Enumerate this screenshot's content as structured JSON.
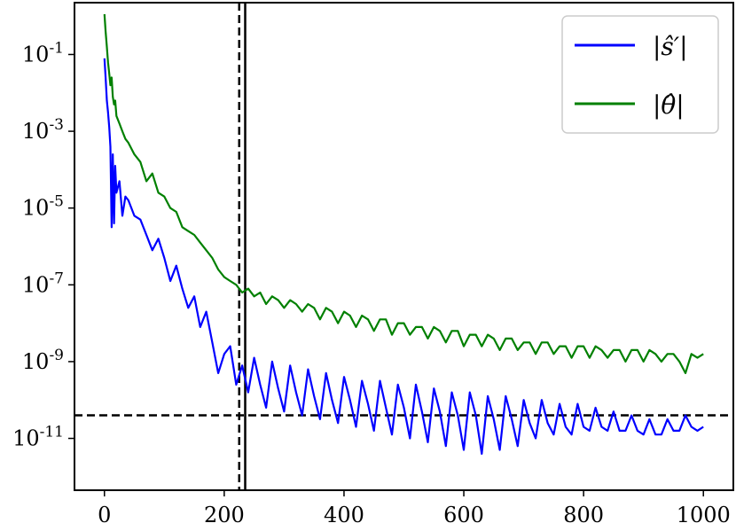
{
  "chart_data": {
    "type": "line",
    "title": "",
    "xlabel": "",
    "ylabel": "",
    "xlim": [
      -50,
      1050
    ],
    "ylim_log10": [
      -12.35,
      0.35
    ],
    "yscale": "log",
    "grid": false,
    "legend_position": "top-right",
    "x_ticks": [
      0,
      200,
      400,
      600,
      800,
      1000
    ],
    "x_tick_labels": [
      "0",
      "200",
      "400",
      "600",
      "800",
      "1000"
    ],
    "y_ticks_log10": [
      -1,
      -3,
      -5,
      -7,
      -9,
      -11
    ],
    "y_tick_labels": [
      {
        "base": "10",
        "exp": "-1"
      },
      {
        "base": "10",
        "exp": "-3"
      },
      {
        "base": "10",
        "exp": "-5"
      },
      {
        "base": "10",
        "exp": "-7"
      },
      {
        "base": "10",
        "exp": "-9"
      },
      {
        "base": "10",
        "exp": "-11"
      }
    ],
    "reference_lines": [
      {
        "orientation": "vertical",
        "x": 225,
        "style": "dashed",
        "color": "#000000"
      },
      {
        "orientation": "vertical",
        "x": 235,
        "style": "solid",
        "color": "#000000"
      },
      {
        "orientation": "horizontal",
        "y_log10": -10.4,
        "style": "dashed",
        "color": "#000000"
      }
    ],
    "series": [
      {
        "name": "|ŝ′|",
        "color": "#0000ff",
        "x": [
          0,
          2,
          4,
          6,
          8,
          10,
          12,
          14,
          16,
          18,
          20,
          25,
          30,
          35,
          40,
          50,
          60,
          70,
          80,
          90,
          100,
          110,
          120,
          130,
          140,
          150,
          160,
          170,
          180,
          190,
          200,
          210,
          220,
          230,
          240,
          250,
          260,
          270,
          280,
          290,
          300,
          310,
          320,
          330,
          340,
          350,
          360,
          370,
          380,
          390,
          400,
          410,
          420,
          430,
          440,
          450,
          460,
          470,
          480,
          490,
          500,
          510,
          520,
          530,
          540,
          550,
          560,
          570,
          580,
          590,
          600,
          610,
          620,
          630,
          640,
          650,
          660,
          670,
          680,
          690,
          700,
          710,
          720,
          730,
          740,
          750,
          760,
          770,
          780,
          790,
          800,
          810,
          820,
          830,
          840,
          850,
          860,
          870,
          880,
          890,
          900,
          910,
          920,
          930,
          940,
          950,
          960,
          970,
          980,
          990,
          1000
        ],
        "y_log10": [
          -1.1,
          -1.6,
          -2.2,
          -2.5,
          -2.9,
          -3.4,
          -5.5,
          -3.6,
          -5.4,
          -3.9,
          -4.6,
          -4.3,
          -5.2,
          -4.7,
          -4.8,
          -5.2,
          -5.3,
          -5.7,
          -6.1,
          -5.8,
          -6.3,
          -6.9,
          -6.5,
          -7.1,
          -7.6,
          -7.3,
          -8.1,
          -7.7,
          -8.5,
          -9.3,
          -8.8,
          -8.6,
          -9.6,
          -9.1,
          -9.8,
          -8.9,
          -9.6,
          -10.2,
          -9.0,
          -9.7,
          -10.3,
          -9.1,
          -9.8,
          -10.4,
          -9.2,
          -9.9,
          -10.5,
          -9.3,
          -10.0,
          -10.6,
          -9.4,
          -10.0,
          -10.7,
          -9.5,
          -10.1,
          -10.8,
          -9.5,
          -10.2,
          -10.9,
          -9.6,
          -10.2,
          -11.0,
          -9.6,
          -10.3,
          -11.1,
          -9.7,
          -10.3,
          -11.2,
          -9.8,
          -10.4,
          -11.3,
          -9.8,
          -10.4,
          -11.4,
          -9.9,
          -10.5,
          -11.3,
          -9.9,
          -10.5,
          -11.2,
          -10.0,
          -10.6,
          -11.0,
          -10.0,
          -10.6,
          -10.9,
          -10.1,
          -10.7,
          -10.9,
          -10.1,
          -10.7,
          -10.8,
          -10.2,
          -10.7,
          -10.8,
          -10.3,
          -10.8,
          -10.8,
          -10.4,
          -10.8,
          -10.9,
          -10.5,
          -10.9,
          -10.9,
          -10.5,
          -10.8,
          -10.8,
          -10.4,
          -10.7,
          -10.8,
          -10.7
        ]
      },
      {
        "name": "|θ̂|",
        "color": "#008000",
        "x": [
          0,
          2,
          4,
          6,
          8,
          10,
          12,
          14,
          16,
          18,
          20,
          25,
          30,
          35,
          40,
          50,
          60,
          70,
          80,
          90,
          100,
          110,
          120,
          130,
          140,
          150,
          160,
          170,
          180,
          190,
          200,
          210,
          220,
          230,
          240,
          250,
          260,
          270,
          280,
          290,
          300,
          310,
          320,
          330,
          340,
          350,
          360,
          370,
          380,
          390,
          400,
          410,
          420,
          430,
          440,
          450,
          460,
          470,
          480,
          490,
          500,
          510,
          520,
          530,
          540,
          550,
          560,
          570,
          580,
          590,
          600,
          610,
          620,
          630,
          640,
          650,
          660,
          670,
          680,
          690,
          700,
          710,
          720,
          730,
          740,
          750,
          760,
          770,
          780,
          790,
          800,
          810,
          820,
          830,
          840,
          850,
          860,
          870,
          880,
          890,
          900,
          910,
          920,
          930,
          940,
          950,
          960,
          970,
          980,
          990,
          1000
        ],
        "y_log10": [
          0.05,
          -0.4,
          -0.8,
          -1.2,
          -1.5,
          -1.8,
          -1.6,
          -2.1,
          -2.3,
          -2.2,
          -2.6,
          -2.8,
          -3.0,
          -3.2,
          -3.3,
          -3.6,
          -3.8,
          -4.3,
          -4.1,
          -4.6,
          -4.7,
          -5.0,
          -5.1,
          -5.5,
          -5.6,
          -5.7,
          -5.9,
          -6.1,
          -6.3,
          -6.6,
          -6.8,
          -6.9,
          -7.0,
          -7.2,
          -7.1,
          -7.3,
          -7.2,
          -7.5,
          -7.3,
          -7.4,
          -7.6,
          -7.4,
          -7.5,
          -7.7,
          -7.5,
          -7.6,
          -7.9,
          -7.6,
          -7.7,
          -8.0,
          -7.7,
          -7.8,
          -8.1,
          -7.8,
          -7.9,
          -8.2,
          -7.9,
          -7.9,
          -8.3,
          -8.0,
          -8.0,
          -8.3,
          -8.1,
          -8.1,
          -8.4,
          -8.1,
          -8.2,
          -8.5,
          -8.2,
          -8.2,
          -8.6,
          -8.3,
          -8.3,
          -8.6,
          -8.3,
          -8.4,
          -8.7,
          -8.4,
          -8.4,
          -8.7,
          -8.5,
          -8.5,
          -8.8,
          -8.5,
          -8.5,
          -8.8,
          -8.6,
          -8.6,
          -8.9,
          -8.6,
          -8.6,
          -8.9,
          -8.6,
          -8.7,
          -8.9,
          -8.7,
          -8.7,
          -9.0,
          -8.7,
          -8.7,
          -9.0,
          -8.7,
          -8.8,
          -9.0,
          -8.8,
          -8.8,
          -9.0,
          -9.3,
          -8.8,
          -8.9,
          -8.8
        ]
      }
    ]
  }
}
